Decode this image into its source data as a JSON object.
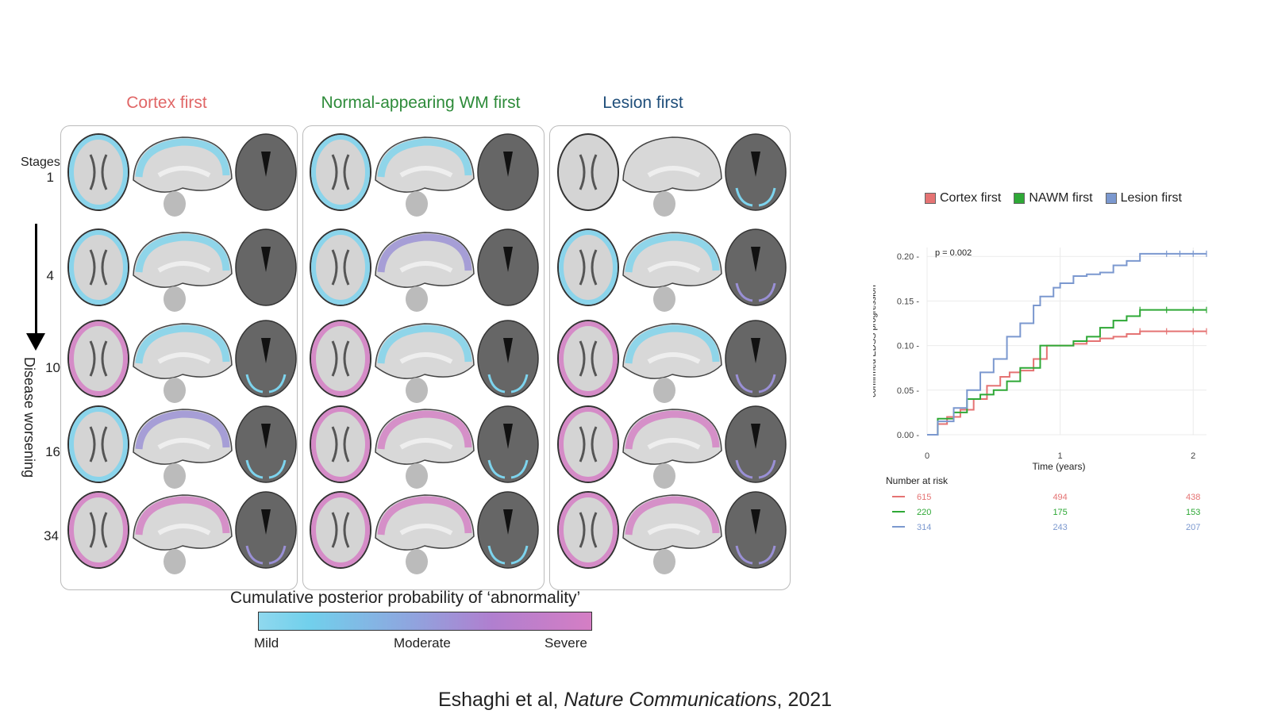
{
  "columns": [
    {
      "title": "Cortex first",
      "color": "#e06666"
    },
    {
      "title": "Normal-appearing WM first",
      "color": "#2e8b3a"
    },
    {
      "title": "Lesion first",
      "color": "#1f4e7a"
    }
  ],
  "stages_label": "Stages",
  "stages": [
    "1",
    "4",
    "10",
    "16",
    "34"
  ],
  "axis_arrow_label": "Disease worsening",
  "colorbar": {
    "title": "Cumulative posterior probability of ‘abnormality’",
    "labels": [
      "Mild",
      "Moderate",
      "Severe"
    ],
    "colors": {
      "mild": "#7dd4ee",
      "moderate": "#9a90d6",
      "severe": "#d57ec4"
    }
  },
  "citation": {
    "authors": "Eshaghi et al, ",
    "journal": "Nature Communications",
    "year": ", 2021"
  },
  "chart_data": {
    "type": "line",
    "title": "",
    "annotation": "p = 0.002",
    "xlabel": "Time (years)",
    "ylabel_lines": [
      "Cumulative 24-week",
      "confirmed EDSS progression"
    ],
    "xlim": [
      0,
      2.1
    ],
    "ylim": [
      0,
      0.21
    ],
    "xticks": [
      0,
      1,
      2
    ],
    "yticks": [
      "0.00",
      "0.05",
      "0.10",
      "0.15",
      "0.20"
    ],
    "legend_position": "top",
    "series": [
      {
        "name": "Cortex first",
        "color": "#e57373",
        "x": [
          0,
          0.08,
          0.15,
          0.25,
          0.35,
          0.45,
          0.55,
          0.62,
          0.7,
          0.8,
          0.9,
          1.0,
          1.1,
          1.2,
          1.3,
          1.4,
          1.5,
          1.6,
          1.8,
          2.0,
          2.1
        ],
        "y": [
          0,
          0.012,
          0.02,
          0.028,
          0.04,
          0.055,
          0.065,
          0.07,
          0.072,
          0.085,
          0.1,
          0.1,
          0.102,
          0.105,
          0.108,
          0.11,
          0.113,
          0.116,
          0.116,
          0.116,
          0.116
        ]
      },
      {
        "name": "NAWM first",
        "color": "#2ea836",
        "x": [
          0,
          0.08,
          0.2,
          0.3,
          0.4,
          0.5,
          0.6,
          0.7,
          0.85,
          1.0,
          1.1,
          1.2,
          1.3,
          1.4,
          1.5,
          1.6,
          1.8,
          2.0,
          2.1
        ],
        "y": [
          0,
          0.018,
          0.025,
          0.04,
          0.045,
          0.05,
          0.06,
          0.075,
          0.1,
          0.1,
          0.105,
          0.11,
          0.12,
          0.128,
          0.133,
          0.14,
          0.14,
          0.14,
          0.14
        ]
      },
      {
        "name": "Lesion first",
        "color": "#7b98cf",
        "x": [
          0,
          0.08,
          0.2,
          0.3,
          0.4,
          0.5,
          0.6,
          0.7,
          0.8,
          0.85,
          0.95,
          1.0,
          1.1,
          1.2,
          1.3,
          1.4,
          1.5,
          1.6,
          1.7,
          1.8,
          1.9,
          2.0,
          2.1
        ],
        "y": [
          0,
          0.015,
          0.03,
          0.05,
          0.07,
          0.085,
          0.11,
          0.125,
          0.145,
          0.155,
          0.165,
          0.17,
          0.178,
          0.18,
          0.182,
          0.19,
          0.195,
          0.203,
          0.203,
          0.203,
          0.203,
          0.203,
          0.203
        ]
      }
    ],
    "risk_table": {
      "title": "Number at risk",
      "rows": [
        {
          "series": "Cortex first",
          "color": "#e57373",
          "values": [
            "615",
            "494",
            "438"
          ]
        },
        {
          "series": "NAWM first",
          "color": "#2ea836",
          "values": [
            "220",
            "175",
            "153"
          ]
        },
        {
          "series": "Lesion first",
          "color": "#7b98cf",
          "values": [
            "314",
            "243",
            "207"
          ]
        }
      ]
    }
  }
}
